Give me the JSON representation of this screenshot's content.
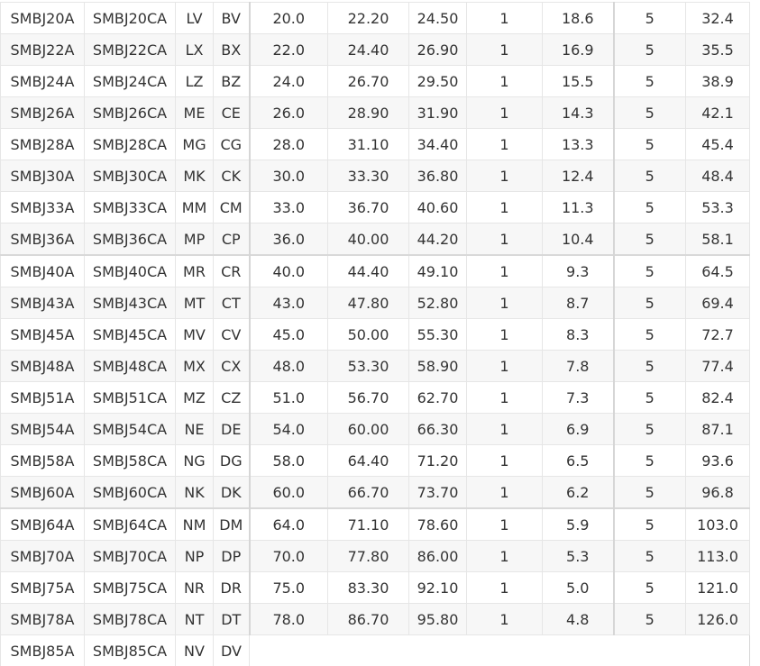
{
  "rows": [
    [
      "SMBJ20A",
      "SMBJ20CA",
      "LV",
      "BV",
      "20.0",
      "22.20",
      "24.50",
      "1",
      "18.6",
      "5",
      "32.4"
    ],
    [
      "SMBJ22A",
      "SMBJ22CA",
      "LX",
      "BX",
      "22.0",
      "24.40",
      "26.90",
      "1",
      "16.9",
      "5",
      "35.5"
    ],
    [
      "SMBJ24A",
      "SMBJ24CA",
      "LZ",
      "BZ",
      "24.0",
      "26.70",
      "29.50",
      "1",
      "15.5",
      "5",
      "38.9"
    ],
    [
      "SMBJ26A",
      "SMBJ26CA",
      "ME",
      "CE",
      "26.0",
      "28.90",
      "31.90",
      "1",
      "14.3",
      "5",
      "42.1"
    ],
    [
      "SMBJ28A",
      "SMBJ28CA",
      "MG",
      "CG",
      "28.0",
      "31.10",
      "34.40",
      "1",
      "13.3",
      "5",
      "45.4"
    ],
    [
      "SMBJ30A",
      "SMBJ30CA",
      "MK",
      "CK",
      "30.0",
      "33.30",
      "36.80",
      "1",
      "12.4",
      "5",
      "48.4"
    ],
    [
      "SMBJ33A",
      "SMBJ33CA",
      "MM",
      "CM",
      "33.0",
      "36.70",
      "40.60",
      "1",
      "11.3",
      "5",
      "53.3"
    ],
    [
      "SMBJ36A",
      "SMBJ36CA",
      "MP",
      "CP",
      "36.0",
      "40.00",
      "44.20",
      "1",
      "10.4",
      "5",
      "58.1"
    ],
    [
      "SMBJ40A",
      "SMBJ40CA",
      "MR",
      "CR",
      "40.0",
      "44.40",
      "49.10",
      "1",
      "9.3",
      "5",
      "64.5"
    ],
    [
      "SMBJ43A",
      "SMBJ43CA",
      "MT",
      "CT",
      "43.0",
      "47.80",
      "52.80",
      "1",
      "8.7",
      "5",
      "69.4"
    ],
    [
      "SMBJ45A",
      "SMBJ45CA",
      "MV",
      "CV",
      "45.0",
      "50.00",
      "55.30",
      "1",
      "8.3",
      "5",
      "72.7"
    ],
    [
      "SMBJ48A",
      "SMBJ48CA",
      "MX",
      "CX",
      "48.0",
      "53.30",
      "58.90",
      "1",
      "7.8",
      "5",
      "77.4"
    ],
    [
      "SMBJ51A",
      "SMBJ51CA",
      "MZ",
      "CZ",
      "51.0",
      "56.70",
      "62.70",
      "1",
      "7.3",
      "5",
      "82.4"
    ],
    [
      "SMBJ54A",
      "SMBJ54CA",
      "NE",
      "DE",
      "54.0",
      "60.00",
      "66.30",
      "1",
      "6.9",
      "5",
      "87.1"
    ],
    [
      "SMBJ58A",
      "SMBJ58CA",
      "NG",
      "DG",
      "58.0",
      "64.40",
      "71.20",
      "1",
      "6.5",
      "5",
      "93.6"
    ],
    [
      "SMBJ60A",
      "SMBJ60CA",
      "NK",
      "DK",
      "60.0",
      "66.70",
      "73.70",
      "1",
      "6.2",
      "5",
      "96.8"
    ],
    [
      "SMBJ64A",
      "SMBJ64CA",
      "NM",
      "DM",
      "64.0",
      "71.10",
      "78.60",
      "1",
      "5.9",
      "5",
      "103.0"
    ],
    [
      "SMBJ70A",
      "SMBJ70CA",
      "NP",
      "DP",
      "70.0",
      "77.80",
      "86.00",
      "1",
      "5.3",
      "5",
      "113.0"
    ],
    [
      "SMBJ75A",
      "SMBJ75CA",
      "NR",
      "DR",
      "75.0",
      "83.30",
      "92.10",
      "1",
      "5.0",
      "5",
      "121.0"
    ],
    [
      "SMBJ78A",
      "SMBJ78CA",
      "NT",
      "DT",
      "78.0",
      "86.70",
      "95.80",
      "1",
      "4.8",
      "5",
      "126.0"
    ],
    [
      "SMBJ85A",
      "SMBJ85CA",
      "NV",
      "DV"
    ]
  ]
}
